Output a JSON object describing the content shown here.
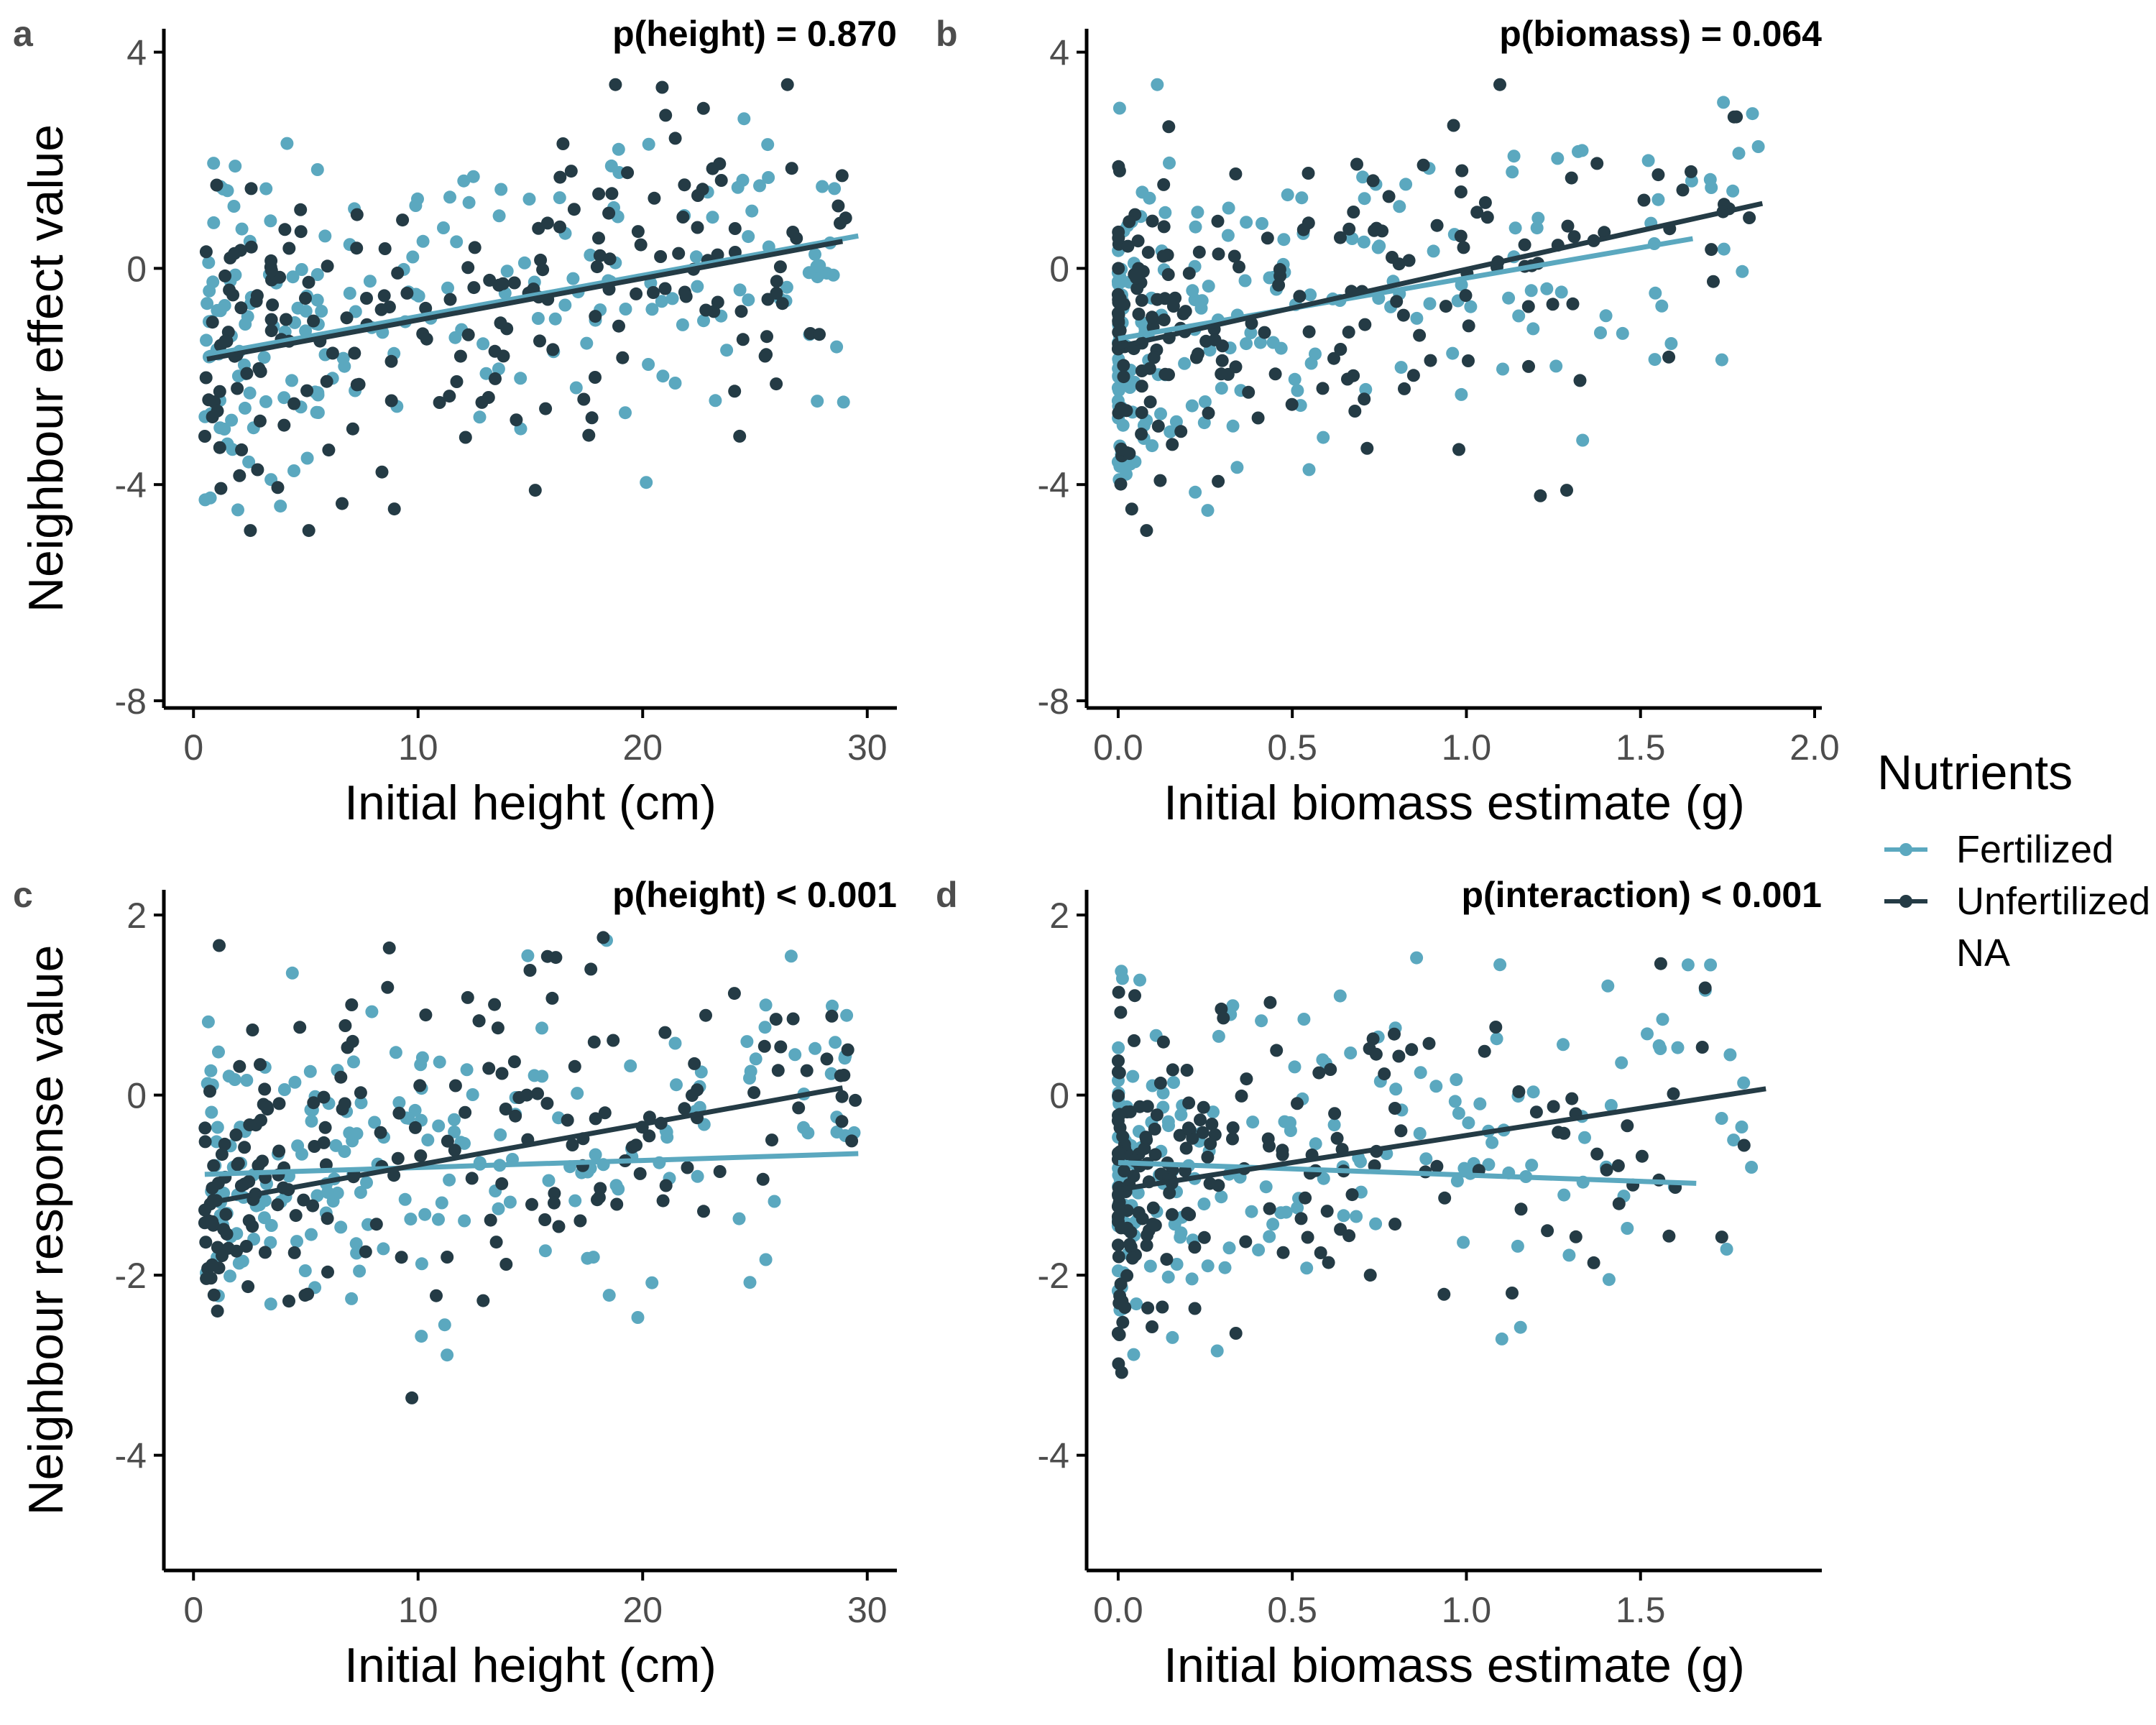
{
  "colors": {
    "Fertilized": "#5ba8bf",
    "Unfertilized": "#243b45",
    "axis": "#000000"
  },
  "legend": {
    "title": "Nutrients",
    "entries": [
      {
        "label": "Fertilized",
        "color": "#5ba8bf"
      },
      {
        "label": "Unfertilized",
        "color": "#243b45"
      },
      {
        "label": "NA",
        "color": null
      }
    ]
  },
  "chart_data": [
    {
      "panel": "a",
      "type": "scatter",
      "annotation": "p(height) = 0.870",
      "xlabel": "Initial height (cm)",
      "ylabel": "Neighbour effect value",
      "xlim": [
        -1,
        31
      ],
      "ylim": [
        -8,
        4.3
      ],
      "xticks": [
        0,
        10,
        20,
        30
      ],
      "xtick_labels": [
        "0",
        "10",
        "20",
        "30"
      ],
      "yticks": [
        -8,
        -4,
        0,
        4
      ],
      "ytick_labels": [
        "-8",
        "-4",
        "0",
        "4"
      ],
      "gen": {
        "xmin": 0.5,
        "xmax": 29.5,
        "xskew": 1.5,
        "slope": 0.075,
        "intercept": -1.6,
        "sd": 1.5,
        "n": 200,
        "ymin": -4.85,
        "ymax": 3.4
      },
      "series": [
        {
          "name": "Fertilized",
          "fit": [
            [
              0.9,
              -1.58
            ],
            [
              29.6,
              0.6
            ]
          ]
        },
        {
          "name": "Unfertilized",
          "fit": [
            [
              0.6,
              -1.68
            ],
            [
              28.9,
              0.5
            ]
          ]
        }
      ]
    },
    {
      "panel": "b",
      "type": "scatter",
      "annotation": "p(biomass) = 0.064",
      "xlabel": "Initial biomass estimate (g)",
      "ylabel": "",
      "xlim": [
        -0.07,
        2.0
      ],
      "ylim": [
        -8,
        4.3
      ],
      "xticks": [
        0,
        0.5,
        1.0,
        1.5,
        2.0
      ],
      "xtick_labels": [
        "0.0",
        "0.5",
        "1.0",
        "1.5",
        "2.0"
      ],
      "yticks": [
        -8,
        -4,
        0,
        4
      ],
      "ytick_labels": [
        "-8",
        "-4",
        "0",
        "4"
      ],
      "gen": {
        "xmin": 0.0,
        "xmax": 1.85,
        "xskew": 2.6,
        "slope": 1.4,
        "intercept": -1.4,
        "sd": 1.4,
        "n": 200,
        "ymin": -4.85,
        "ymax": 3.4
      },
      "series": [
        {
          "name": "Fertilized",
          "fit": [
            [
              0.0,
              -1.3
            ],
            [
              1.65,
              0.55
            ]
          ]
        },
        {
          "name": "Unfertilized",
          "fit": [
            [
              0.0,
              -1.45
            ],
            [
              1.85,
              1.2
            ]
          ]
        }
      ]
    },
    {
      "panel": "c",
      "type": "scatter",
      "annotation": "p(height) < 0.001",
      "xlabel": "Initial height (cm)",
      "ylabel": "Neighbour response value",
      "xlim": [
        -1,
        31
      ],
      "ylim": [
        -5.2,
        2.2
      ],
      "xticks": [
        0,
        10,
        20,
        30
      ],
      "xtick_labels": [
        "0",
        "10",
        "20",
        "30"
      ],
      "yticks": [
        -4,
        -2,
        0,
        2
      ],
      "ytick_labels": [
        "-4",
        "-2",
        "0",
        "2"
      ],
      "gen": {
        "xmin": 0.5,
        "xmax": 29.5,
        "xskew": 1.5,
        "slope": 0.035,
        "intercept": -0.95,
        "sd": 0.9,
        "n": 200,
        "ymin": -4.85,
        "ymax": 1.75
      },
      "series": [
        {
          "name": "Fertilized",
          "fit": [
            [
              0.5,
              -0.88
            ],
            [
              29.6,
              -0.65
            ]
          ]
        },
        {
          "name": "Unfertilized",
          "fit": [
            [
              0.6,
              -1.2
            ],
            [
              28.9,
              0.08
            ]
          ]
        }
      ]
    },
    {
      "panel": "d",
      "type": "scatter",
      "annotation": "p(interaction) < 0.001",
      "xlabel": "Initial biomass estimate (g)",
      "ylabel": "",
      "xlim": [
        -0.07,
        2.0
      ],
      "ylim": [
        -5.2,
        2.2
      ],
      "xticks": [
        0,
        0.5,
        1.0,
        1.5
      ],
      "xtick_labels": [
        "0.0",
        "0.5",
        "1.0",
        "1.5"
      ],
      "yticks": [
        -4,
        -2,
        0,
        2
      ],
      "ytick_labels": [
        "-4",
        "-2",
        "0",
        "2"
      ],
      "gen": {
        "xmin": 0.0,
        "xmax": 1.85,
        "xskew": 2.6,
        "slope": 0.4,
        "intercept": -0.95,
        "sd": 0.85,
        "n": 200,
        "ymin": -4.85,
        "ymax": 1.75
      },
      "series": [
        {
          "name": "Fertilized",
          "fit": [
            [
              0.0,
              -0.75
            ],
            [
              1.66,
              -0.98
            ]
          ]
        },
        {
          "name": "Unfertilized",
          "fit": [
            [
              0.0,
              -1.05
            ],
            [
              1.86,
              0.07
            ]
          ]
        }
      ]
    }
  ]
}
